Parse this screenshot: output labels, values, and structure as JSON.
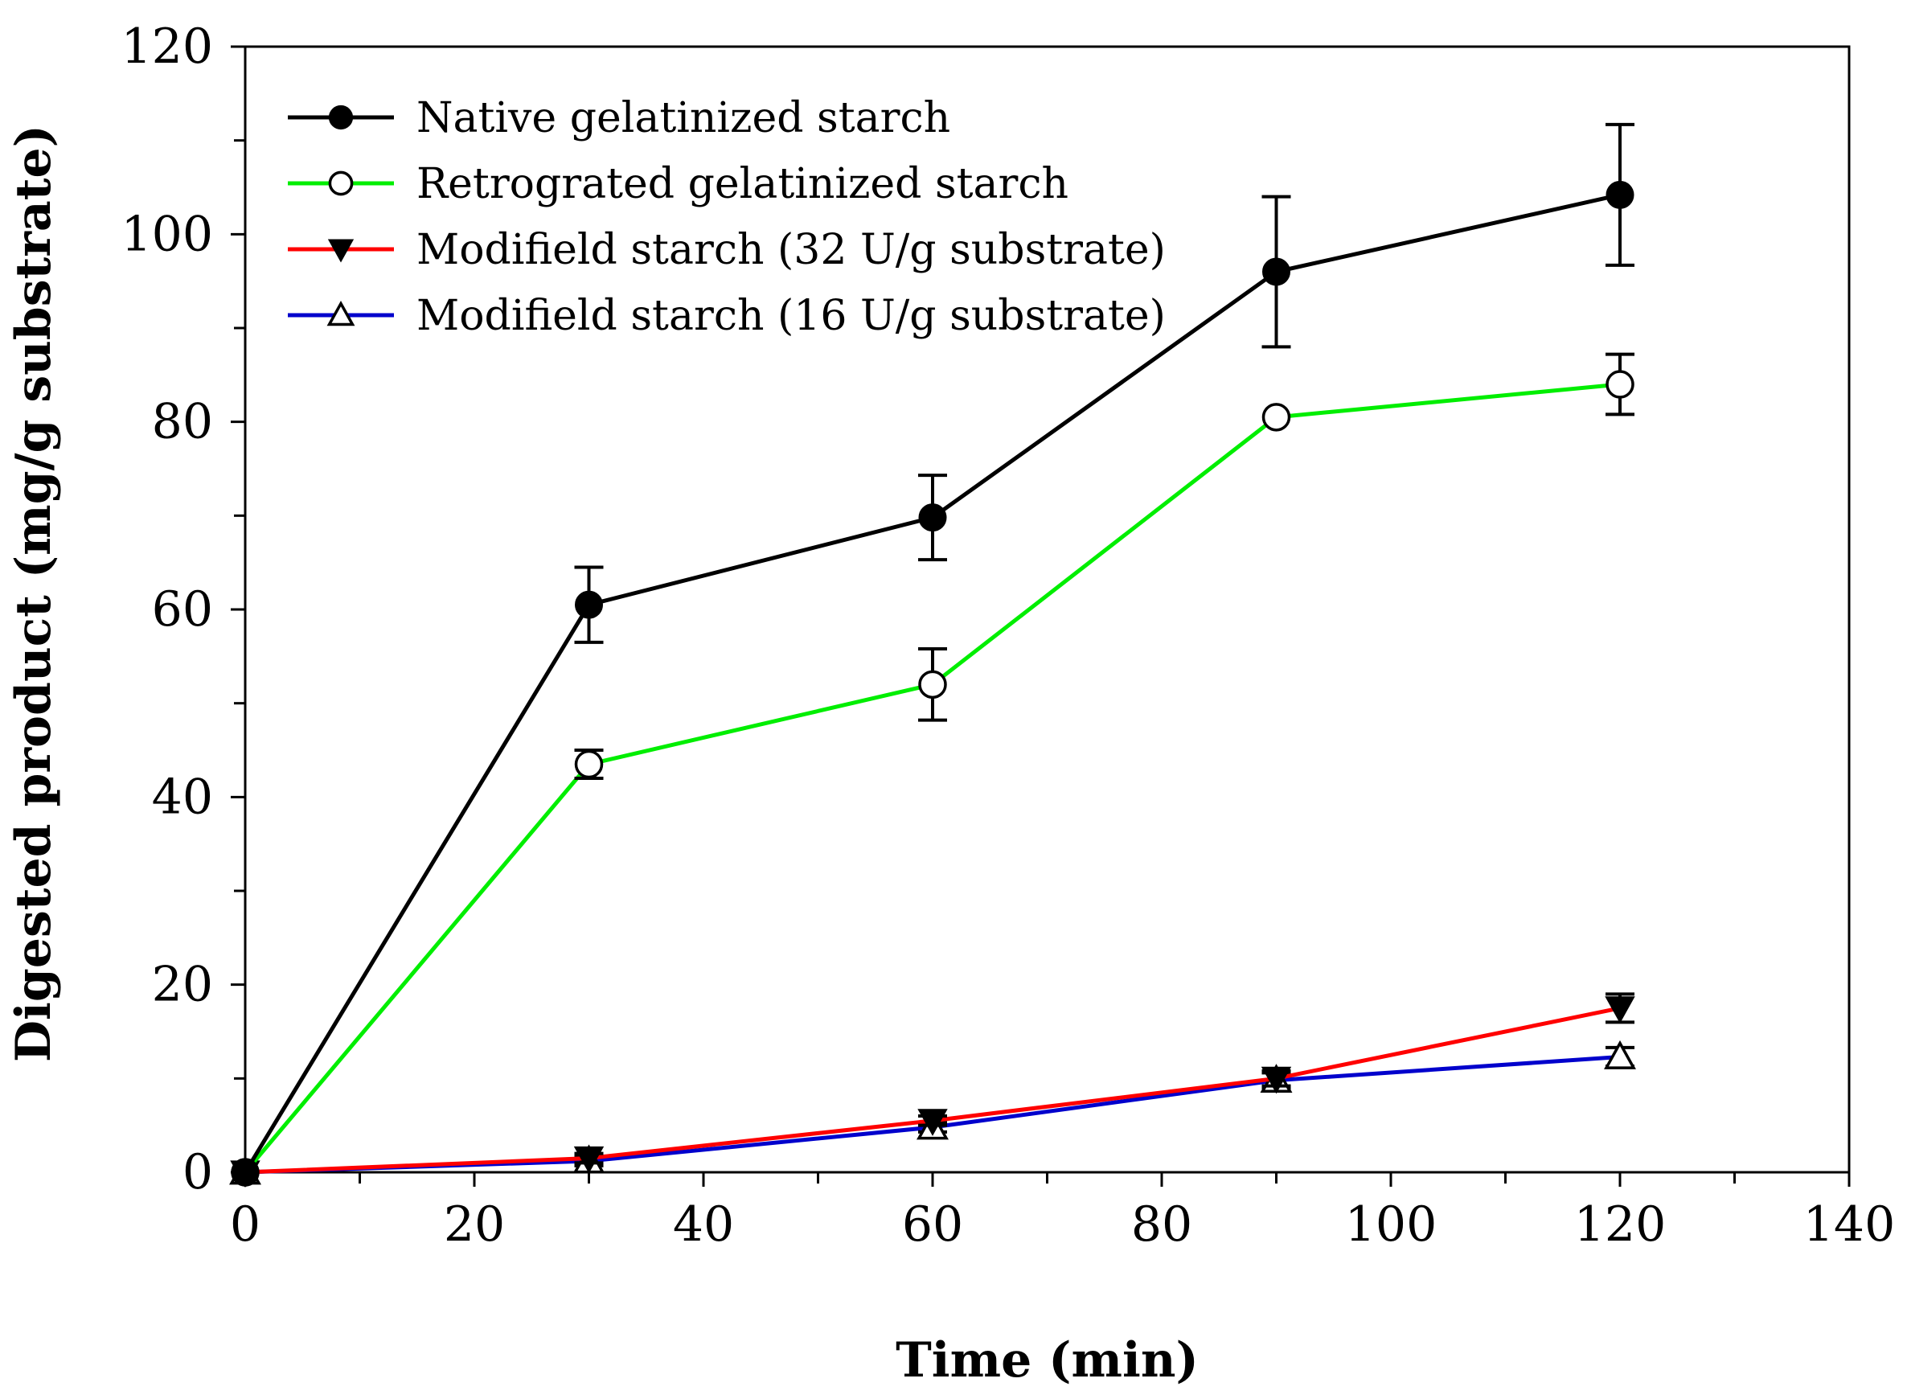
{
  "chart_data": {
    "type": "line",
    "title": "",
    "xlabel": "Time (min)",
    "ylabel": "Digested product (mg/g substrate)",
    "xlim": [
      0,
      140
    ],
    "ylim": [
      0,
      120
    ],
    "x_ticks": [
      "0",
      "20",
      "40",
      "60",
      "80",
      "100",
      "120",
      "140"
    ],
    "y_ticks": [
      "0",
      "20",
      "40",
      "60",
      "80",
      "100",
      "120"
    ],
    "x": [
      0,
      30,
      60,
      90,
      120
    ],
    "legend_position": "top-left",
    "grid": false,
    "series": [
      {
        "name": "Native gelatinized starch",
        "color": "#000000",
        "marker": "filled-circle",
        "values": [
          0,
          60.5,
          69.8,
          96,
          104.2
        ],
        "errors": [
          0,
          4,
          4.5,
          8,
          7.5
        ]
      },
      {
        "name": "Retrograted gelatinized starch",
        "color": "#00ee00",
        "marker": "open-circle",
        "values": [
          0,
          43.5,
          52,
          80.5,
          84
        ],
        "errors": [
          0,
          1.5,
          3.8,
          0,
          3.2
        ]
      },
      {
        "name": "Modifield starch (32 U/g substrate)",
        "color": "#ff0000",
        "marker": "filled-triangle-down",
        "values": [
          0,
          1.5,
          5.5,
          10,
          17.5
        ],
        "errors": [
          0,
          0.5,
          0.5,
          0.8,
          1.5
        ]
      },
      {
        "name": "Modifield starch (16 U/g substrate)",
        "color": "#0000cc",
        "marker": "open-triangle-up",
        "values": [
          0,
          1.2,
          4.8,
          9.8,
          12.3
        ],
        "errors": [
          0,
          0.5,
          0.5,
          0.8,
          1
        ]
      }
    ]
  }
}
